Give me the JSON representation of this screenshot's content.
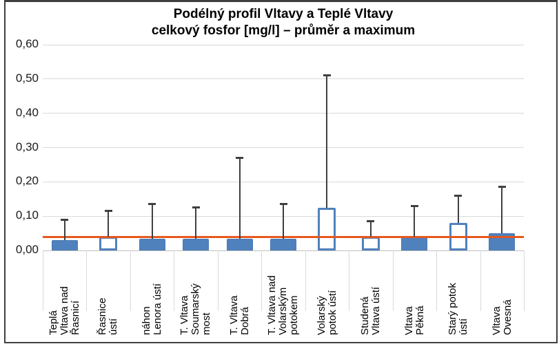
{
  "chart_data": {
    "type": "bar",
    "title": "Podélný profil Vltavy a Teplé Vltavy\ncelkový fosfor [mg/l] – průměr a maximum",
    "categories": [
      "Teplá\nVltava nad\nŘasnicí",
      "Řasnice\nústí",
      "náhon\nLenora ústí",
      "T. Vltava\nSoumarský\nmost",
      "T. Vltava\nDobrá",
      "T. Vltava nad\nVolarským\npotokem",
      "Volarský\npotok ústí",
      "Studená\nVltava ústí",
      "Vltava\nPěkná",
      "Starý potok\nústí",
      "Vltava\nOvesná"
    ],
    "series": [
      {
        "name": "průměr",
        "type": "bar",
        "values": [
          0.03,
          0.04,
          0.035,
          0.035,
          0.035,
          0.035,
          0.125,
          0.04,
          0.04,
          0.08,
          0.05
        ]
      },
      {
        "name": "maximum",
        "type": "error-max",
        "values": [
          0.09,
          0.115,
          0.135,
          0.125,
          0.27,
          0.135,
          0.51,
          0.085,
          0.13,
          0.16,
          0.185
        ]
      }
    ],
    "bar_fill_style": [
      "filled",
      "hollow",
      "filled",
      "filled",
      "filled",
      "filled",
      "hollow",
      "hollow",
      "filled",
      "hollow",
      "filled"
    ],
    "reference_line": 0.04,
    "ylim": [
      0,
      0.6
    ],
    "ytick_labels": [
      "0,00",
      "0,10",
      "0,20",
      "0,30",
      "0,40",
      "0,50",
      "0,60"
    ],
    "grid": true,
    "legend": "none",
    "colors": {
      "bar": "#4f81bd",
      "reference_line": "#e8571b",
      "error_bar": "#3f3f3f",
      "gridline": "#d9d9d9",
      "border": "#3f3f3f"
    }
  }
}
